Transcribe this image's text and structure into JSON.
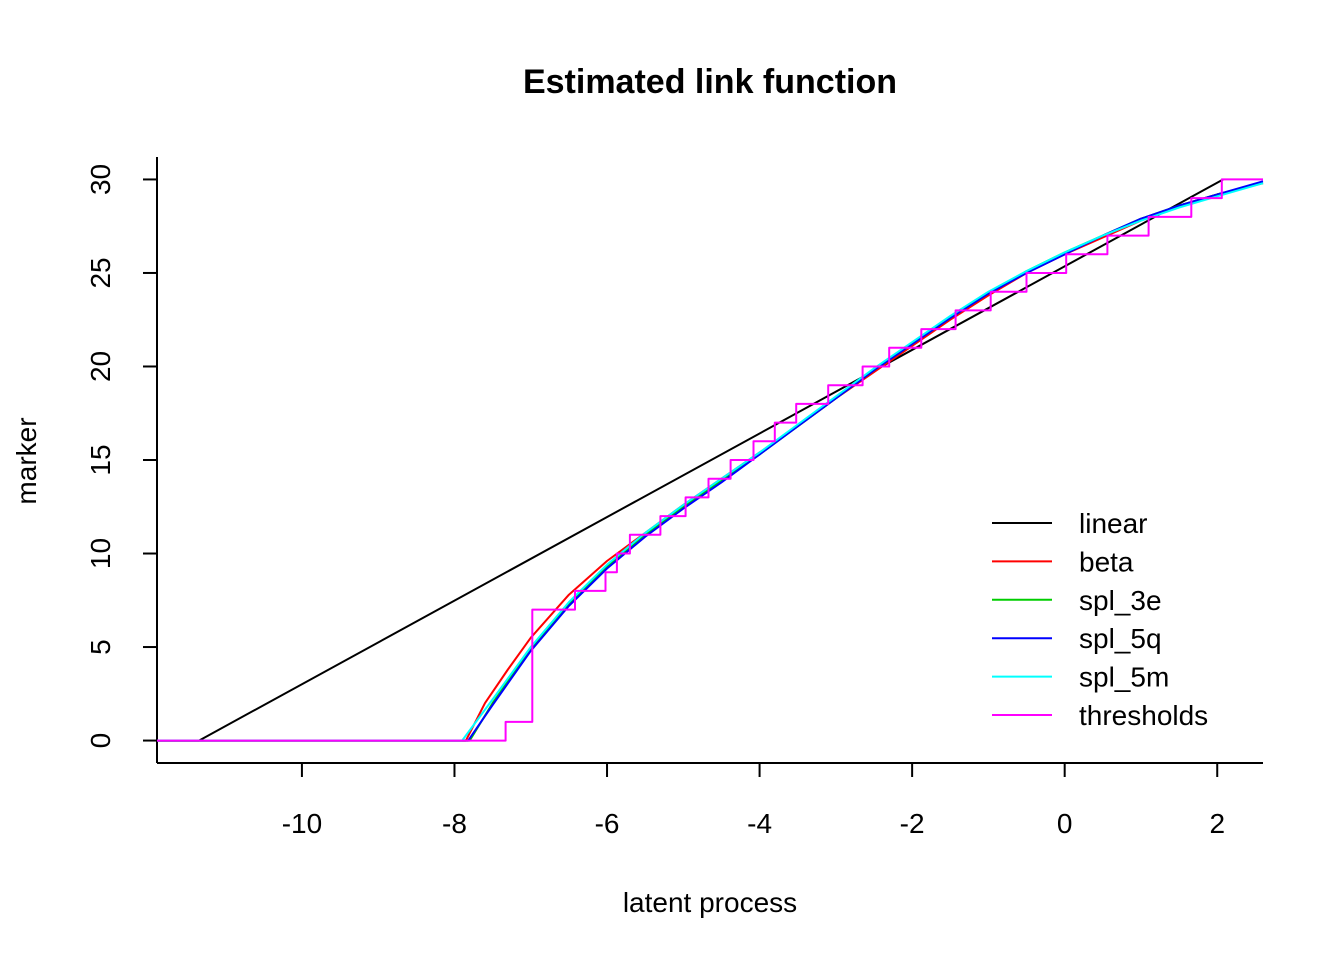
{
  "chart_data": {
    "type": "line",
    "title": "Estimated link function",
    "xlabel": "latent process",
    "ylabel": "marker",
    "xlim": [
      -11.9,
      2.6
    ],
    "ylim": [
      -1.2,
      31.2
    ],
    "xticks": [
      -10,
      -8,
      -6,
      -4,
      -2,
      0,
      2
    ],
    "xtick_labels": [
      "-10",
      "-8",
      "-6",
      "-4",
      "-2",
      "0",
      "2"
    ],
    "yticks": [
      0,
      5,
      10,
      15,
      20,
      25,
      30
    ],
    "ytick_labels": [
      "0",
      "5",
      "10",
      "15",
      "20",
      "25",
      "30"
    ],
    "legend_position": "bottom-right",
    "series": [
      {
        "name": "linear",
        "color": "#000000",
        "points": [
          [
            -11.9,
            0
          ],
          [
            -11.35,
            0
          ],
          [
            2.08,
            30
          ]
        ]
      },
      {
        "name": "beta",
        "color": "#ff0000",
        "points": [
          [
            -11.9,
            0
          ],
          [
            -7.85,
            0
          ],
          [
            -7.6,
            2.0
          ],
          [
            -7.3,
            3.8
          ],
          [
            -7.0,
            5.5
          ],
          [
            -6.5,
            7.8
          ],
          [
            -6.0,
            9.6
          ],
          [
            -5.5,
            11.1
          ],
          [
            -5.0,
            12.6
          ],
          [
            -4.5,
            14.0
          ],
          [
            -4.0,
            15.4
          ],
          [
            -3.5,
            16.8
          ],
          [
            -3.0,
            18.3
          ],
          [
            -2.5,
            19.7
          ],
          [
            -2.0,
            21.1
          ],
          [
            -1.5,
            22.5
          ],
          [
            -1.0,
            23.8
          ],
          [
            -0.5,
            25.0
          ],
          [
            0.0,
            26.0
          ],
          [
            0.5,
            26.9
          ],
          [
            1.0,
            27.8
          ],
          [
            1.5,
            28.6
          ],
          [
            2.0,
            29.2
          ],
          [
            2.6,
            29.8
          ]
        ]
      },
      {
        "name": "spl_3e",
        "color": "#00cd00",
        "points": [
          [
            -11.9,
            0
          ],
          [
            -7.8,
            0
          ],
          [
            -7.5,
            2.0
          ],
          [
            -7.0,
            4.9
          ],
          [
            -6.5,
            7.3
          ],
          [
            -6.0,
            9.3
          ],
          [
            -5.5,
            11.0
          ],
          [
            -5.0,
            12.5
          ],
          [
            -4.5,
            13.9
          ],
          [
            -4.0,
            15.3
          ],
          [
            -3.5,
            16.8
          ],
          [
            -3.0,
            18.3
          ],
          [
            -2.5,
            19.8
          ],
          [
            -2.0,
            21.2
          ],
          [
            -1.5,
            22.6
          ],
          [
            -1.0,
            23.9
          ],
          [
            -0.5,
            25.1
          ],
          [
            0.0,
            26.1
          ],
          [
            0.5,
            27.0
          ],
          [
            1.0,
            27.9
          ],
          [
            1.5,
            28.6
          ],
          [
            2.0,
            29.2
          ],
          [
            2.6,
            29.8
          ]
        ]
      },
      {
        "name": "spl_5q",
        "color": "#0000ff",
        "points": [
          [
            -11.9,
            0
          ],
          [
            -7.82,
            0
          ],
          [
            -7.5,
            1.9
          ],
          [
            -7.0,
            4.8
          ],
          [
            -6.5,
            7.2
          ],
          [
            -6.0,
            9.2
          ],
          [
            -5.5,
            10.9
          ],
          [
            -5.0,
            12.4
          ],
          [
            -4.5,
            13.8
          ],
          [
            -4.0,
            15.3
          ],
          [
            -3.5,
            16.8
          ],
          [
            -3.0,
            18.3
          ],
          [
            -2.5,
            19.8
          ],
          [
            -2.0,
            21.2
          ],
          [
            -1.5,
            22.6
          ],
          [
            -1.0,
            23.9
          ],
          [
            -0.5,
            25.0
          ],
          [
            0.0,
            26.0
          ],
          [
            0.5,
            27.0
          ],
          [
            1.0,
            27.9
          ],
          [
            1.5,
            28.6
          ],
          [
            2.0,
            29.2
          ],
          [
            2.6,
            29.9
          ]
        ]
      },
      {
        "name": "spl_5m",
        "color": "#00ffff",
        "points": [
          [
            -11.9,
            0
          ],
          [
            -7.9,
            0
          ],
          [
            -7.5,
            2.2
          ],
          [
            -7.0,
            5.0
          ],
          [
            -6.5,
            7.4
          ],
          [
            -6.0,
            9.4
          ],
          [
            -5.5,
            11.1
          ],
          [
            -5.0,
            12.6
          ],
          [
            -4.5,
            14.0
          ],
          [
            -4.0,
            15.4
          ],
          [
            -3.5,
            16.9
          ],
          [
            -3.0,
            18.4
          ],
          [
            -2.5,
            19.9
          ],
          [
            -2.0,
            21.3
          ],
          [
            -1.5,
            22.7
          ],
          [
            -1.0,
            24.0
          ],
          [
            -0.5,
            25.1
          ],
          [
            0.0,
            26.1
          ],
          [
            0.5,
            27.0
          ],
          [
            1.0,
            27.8
          ],
          [
            1.5,
            28.5
          ],
          [
            2.0,
            29.1
          ],
          [
            2.6,
            29.8
          ]
        ]
      },
      {
        "name": "thresholds",
        "color": "#ff00ff",
        "points": [
          [
            -11.9,
            0
          ],
          [
            -7.33,
            0
          ],
          [
            -7.33,
            1
          ],
          [
            -6.98,
            1
          ],
          [
            -6.98,
            7
          ],
          [
            -6.42,
            7
          ],
          [
            -6.42,
            8
          ],
          [
            -6.02,
            8
          ],
          [
            -6.02,
            9
          ],
          [
            -5.87,
            9
          ],
          [
            -5.87,
            10
          ],
          [
            -5.7,
            10
          ],
          [
            -5.7,
            11
          ],
          [
            -5.3,
            11
          ],
          [
            -5.3,
            12
          ],
          [
            -4.97,
            12
          ],
          [
            -4.97,
            13
          ],
          [
            -4.67,
            13
          ],
          [
            -4.67,
            14
          ],
          [
            -4.38,
            14
          ],
          [
            -4.38,
            15
          ],
          [
            -4.08,
            15
          ],
          [
            -4.08,
            16
          ],
          [
            -3.8,
            16
          ],
          [
            -3.8,
            17
          ],
          [
            -3.52,
            17
          ],
          [
            -3.52,
            18
          ],
          [
            -3.1,
            18
          ],
          [
            -3.1,
            19
          ],
          [
            -2.65,
            19
          ],
          [
            -2.65,
            20
          ],
          [
            -2.3,
            20
          ],
          [
            -2.3,
            21
          ],
          [
            -1.88,
            21
          ],
          [
            -1.88,
            22
          ],
          [
            -1.43,
            22
          ],
          [
            -1.43,
            23
          ],
          [
            -0.97,
            23
          ],
          [
            -0.97,
            24
          ],
          [
            -0.5,
            24
          ],
          [
            -0.5,
            25
          ],
          [
            0.02,
            25
          ],
          [
            0.02,
            26
          ],
          [
            0.56,
            26
          ],
          [
            0.56,
            27
          ],
          [
            1.1,
            27
          ],
          [
            1.1,
            28
          ],
          [
            1.66,
            28
          ],
          [
            1.66,
            29
          ],
          [
            2.06,
            29
          ],
          [
            2.06,
            30
          ],
          [
            2.6,
            30
          ]
        ]
      }
    ]
  }
}
